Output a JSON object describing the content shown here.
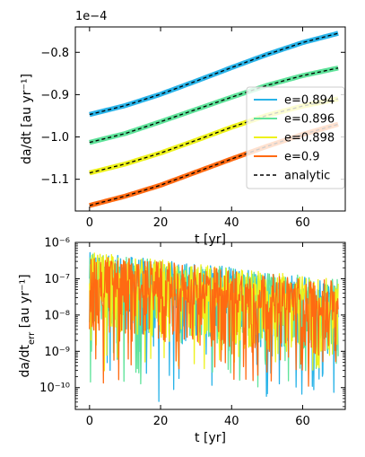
{
  "chart_data": [
    {
      "type": "line",
      "xlabel": "t [yr]",
      "ylabel": "da/dt [au yr⁻¹]",
      "offset_label": "1e−4",
      "xlim": [
        -4,
        72
      ],
      "ylim": [
        -1.175,
        -0.74
      ],
      "xticks": [
        0,
        20,
        40,
        60
      ],
      "yticks": [
        -1.1,
        -1.0,
        -0.9,
        -0.8
      ],
      "ytick_labels": [
        "−1.1",
        "−1.0",
        "−0.9",
        "−0.8"
      ],
      "legend_position": "lower-right",
      "series": [
        {
          "name": "e=0.894",
          "color": "#29b3e8",
          "x": [
            0,
            10,
            20,
            30,
            40,
            50,
            60,
            70
          ],
          "y": [
            -0.947,
            -0.926,
            -0.899,
            -0.868,
            -0.836,
            -0.805,
            -0.777,
            -0.755
          ]
        },
        {
          "name": "e=0.896",
          "color": "#5fe39a",
          "x": [
            0,
            10,
            20,
            30,
            40,
            50,
            60,
            70
          ],
          "y": [
            -1.013,
            -0.992,
            -0.964,
            -0.935,
            -0.906,
            -0.878,
            -0.855,
            -0.837
          ]
        },
        {
          "name": "e=0.898",
          "color": "#eef21c",
          "x": [
            0,
            10,
            20,
            30,
            40,
            50,
            60,
            70
          ],
          "y": [
            -1.085,
            -1.064,
            -1.038,
            -1.008,
            -0.977,
            -0.949,
            -0.927,
            -0.91
          ]
        },
        {
          "name": "e=0.9",
          "color": "#ff6a12",
          "x": [
            0,
            10,
            20,
            30,
            40,
            50,
            60,
            70
          ],
          "y": [
            -1.162,
            -1.14,
            -1.114,
            -1.083,
            -1.052,
            -1.022,
            -0.994,
            -0.97
          ]
        },
        {
          "name": "analytic",
          "color": "#000000",
          "dashed": true
        }
      ]
    },
    {
      "type": "line",
      "xlabel": "t [yr]",
      "ylabel": "da/dt",
      "ylabel_subscript": "err",
      "ylabel_suffix": " [au yr⁻¹]",
      "log_y": true,
      "xlim": [
        -4,
        72
      ],
      "ylim_exp": [
        -10.6,
        -6
      ],
      "xticks": [
        0,
        20,
        40,
        60
      ],
      "yticks_exp": [
        -10,
        -9,
        -8,
        -7,
        -6
      ],
      "ytick_labels": [
        "10⁻¹⁰",
        "10⁻⁹",
        "10⁻⁸",
        "10⁻⁷",
        "10⁻⁶"
      ],
      "series": [
        {
          "name": "e=0.894",
          "color": "#29b3e8",
          "log10_upper": [
            -6.25,
            -6.6,
            -7.0
          ],
          "log10_center": [
            -6.9,
            -7.3,
            -7.65
          ],
          "min_log10": -10.4
        },
        {
          "name": "e=0.896",
          "color": "#5fe39a",
          "log10_upper": [
            -6.25,
            -6.6,
            -7.0
          ],
          "log10_center": [
            -6.9,
            -7.3,
            -7.65
          ],
          "min_log10": -10.0
        },
        {
          "name": "e=0.898",
          "color": "#eef21c",
          "log10_upper": [
            -6.25,
            -6.6,
            -7.0
          ],
          "log10_center": [
            -6.9,
            -7.3,
            -7.65
          ],
          "min_log10": -9.6
        },
        {
          "name": "e=0.9",
          "color": "#ff6a12",
          "log10_upper": [
            -6.3,
            -6.65,
            -7.05
          ],
          "log10_center": [
            -6.95,
            -7.35,
            -7.7
          ],
          "min_log10": -10.0
        }
      ]
    }
  ]
}
